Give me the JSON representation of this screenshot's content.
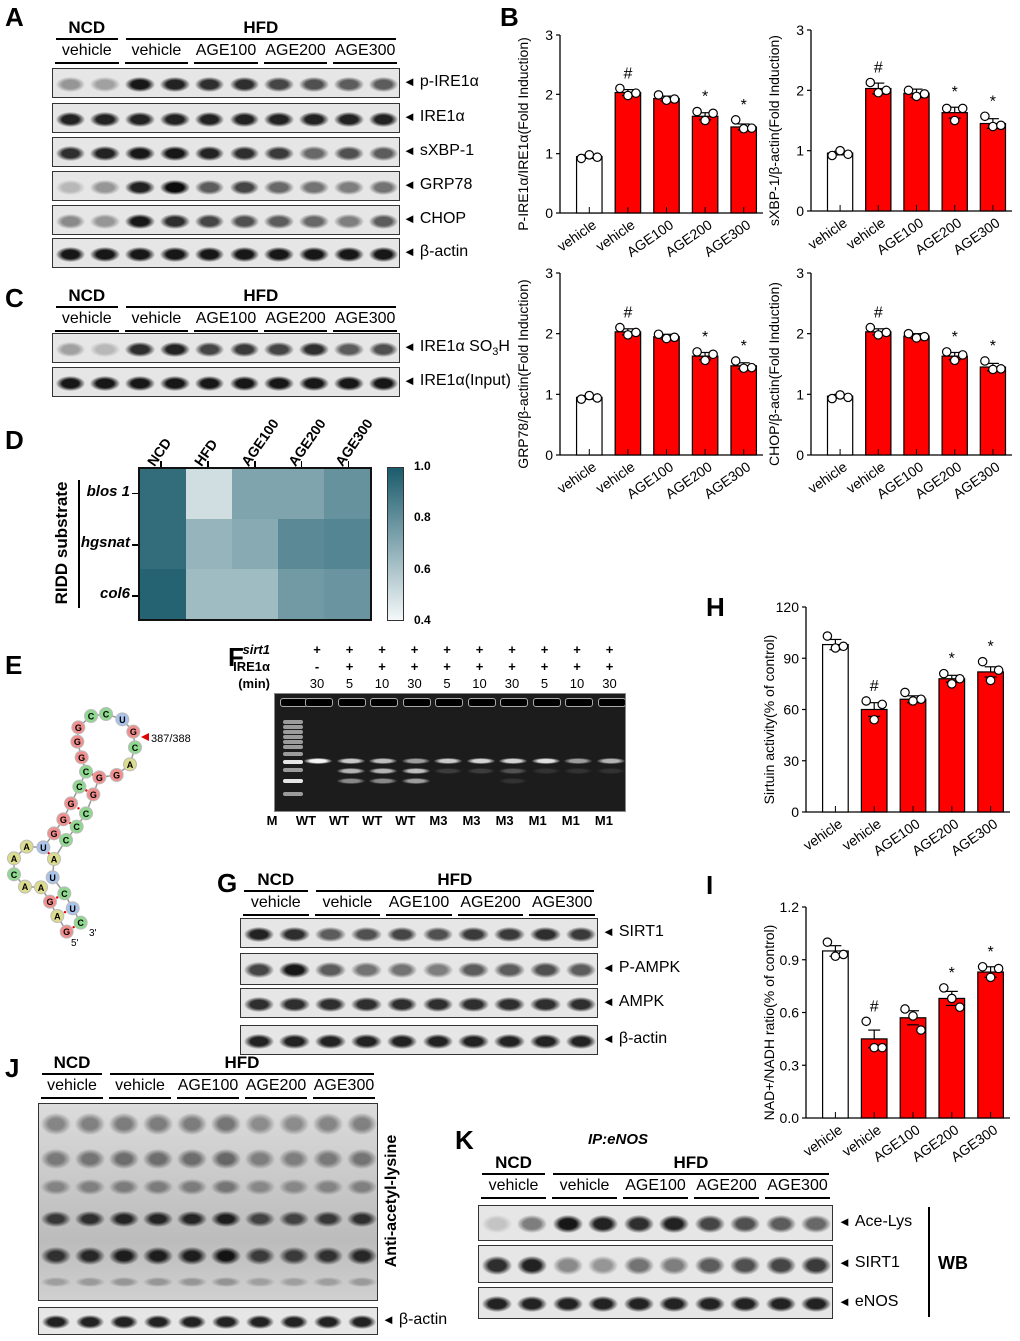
{
  "panel_labels": {
    "A": "A",
    "B": "B",
    "C": "C",
    "D": "D",
    "E": "E",
    "F": "F",
    "G": "G",
    "H": "H",
    "I": "I",
    "J": "J",
    "K": "K"
  },
  "arrow": "◄",
  "blot_panels": {
    "A": {
      "groups": [
        {
          "label": "NCD",
          "lanes": 2
        },
        {
          "label": "HFD",
          "lanes": 8
        }
      ],
      "subgroups": [
        "vehicle",
        "vehicle",
        "AGE100",
        "AGE200",
        "AGE300"
      ],
      "rows": [
        {
          "label": "p-IRE1α",
          "bands": [
            0.35,
            0.3,
            0.9,
            0.85,
            0.8,
            0.8,
            0.7,
            0.65,
            0.6,
            0.6
          ]
        },
        {
          "label": "IRE1α",
          "bands": [
            0.85,
            0.85,
            0.85,
            0.85,
            0.85,
            0.85,
            0.85,
            0.85,
            0.85,
            0.85
          ]
        },
        {
          "label": "sXBP-1",
          "bands": [
            0.8,
            0.85,
            0.9,
            0.9,
            0.85,
            0.8,
            0.75,
            0.55,
            0.65,
            0.6
          ]
        },
        {
          "label": "GRP78",
          "bands": [
            0.2,
            0.35,
            0.85,
            0.95,
            0.6,
            0.7,
            0.55,
            0.5,
            0.45,
            0.5
          ]
        },
        {
          "label": "CHOP",
          "bands": [
            0.4,
            0.35,
            0.9,
            0.8,
            0.7,
            0.65,
            0.6,
            0.55,
            0.45,
            0.6
          ]
        },
        {
          "label": "β-actin",
          "bands": [
            0.9,
            0.9,
            0.9,
            0.9,
            0.9,
            0.9,
            0.9,
            0.9,
            0.9,
            0.9
          ]
        }
      ]
    },
    "C": {
      "groups": [
        {
          "label": "NCD",
          "lanes": 2
        },
        {
          "label": "HFD",
          "lanes": 8
        }
      ],
      "subgroups": [
        "vehicle",
        "vehicle",
        "AGE100",
        "AGE200",
        "AGE300"
      ],
      "rows": [
        {
          "label": "IRE1α SO",
          "sub": "3",
          "suffix": "H",
          "bands": [
            0.3,
            0.2,
            0.8,
            0.85,
            0.7,
            0.75,
            0.7,
            0.8,
            0.6,
            0.65
          ]
        },
        {
          "label": "IRE1α(Input)",
          "bands": [
            0.9,
            0.9,
            0.9,
            0.9,
            0.9,
            0.9,
            0.9,
            0.9,
            0.9,
            0.9
          ]
        }
      ]
    },
    "G": {
      "groups": [
        {
          "label": "NCD",
          "lanes": 2
        },
        {
          "label": "HFD",
          "lanes": 8
        }
      ],
      "subgroups": [
        "vehicle",
        "vehicle",
        "AGE100",
        "AGE200",
        "AGE300"
      ],
      "rows": [
        {
          "label": "SIRT1",
          "bands": [
            0.85,
            0.8,
            0.6,
            0.65,
            0.7,
            0.65,
            0.75,
            0.75,
            0.8,
            0.75
          ]
        },
        {
          "label": "P-AMPK",
          "bands": [
            0.7,
            0.9,
            0.6,
            0.5,
            0.5,
            0.45,
            0.6,
            0.6,
            0.65,
            0.6
          ]
        },
        {
          "label": "AMPK",
          "bands": [
            0.8,
            0.8,
            0.8,
            0.8,
            0.8,
            0.8,
            0.8,
            0.8,
            0.8,
            0.8
          ]
        },
        {
          "label": "β-actin",
          "bands": [
            0.85,
            0.85,
            0.85,
            0.85,
            0.85,
            0.85,
            0.85,
            0.85,
            0.85,
            0.85
          ]
        }
      ]
    },
    "J": {
      "groups": [
        {
          "label": "NCD",
          "lanes": 2
        },
        {
          "label": "HFD",
          "lanes": 8
        }
      ],
      "subgroups": [
        "vehicle",
        "vehicle",
        "AGE100",
        "AGE200",
        "AGE300"
      ],
      "rows": [
        {
          "label": "Anti-acetyl-lysine",
          "vertical": true,
          "bands": [
            0.75,
            0.8,
            0.85,
            0.85,
            0.85,
            0.9,
            0.7,
            0.7,
            0.75,
            0.8
          ]
        },
        {
          "label": "β-actin",
          "bands": [
            0.85,
            0.85,
            0.85,
            0.85,
            0.85,
            0.85,
            0.85,
            0.85,
            0.85,
            0.85
          ]
        }
      ]
    },
    "K": {
      "title": "IP:eNOS",
      "wb_label": "WB",
      "groups": [
        {
          "label": "NCD",
          "lanes": 2
        },
        {
          "label": "HFD",
          "lanes": 8
        }
      ],
      "subgroups": [
        "vehicle",
        "vehicle",
        "AGE100",
        "AGE200",
        "AGE300"
      ],
      "rows": [
        {
          "label": "Ace-Lys",
          "bands": [
            0.15,
            0.45,
            0.9,
            0.85,
            0.8,
            0.85,
            0.7,
            0.65,
            0.6,
            0.55
          ]
        },
        {
          "label": "SIRT1",
          "bands": [
            0.8,
            0.85,
            0.4,
            0.35,
            0.5,
            0.45,
            0.6,
            0.65,
            0.7,
            0.75
          ]
        },
        {
          "label": "eNOS",
          "bands": [
            0.85,
            0.85,
            0.85,
            0.85,
            0.85,
            0.85,
            0.85,
            0.85,
            0.85,
            0.85
          ]
        }
      ]
    }
  },
  "gel": {
    "row_labels": [
      "sirt1",
      "IRE1α",
      "(min)"
    ],
    "sirt1": [
      "+",
      "+",
      "+",
      "+",
      "+",
      "+",
      "+",
      "+",
      "+",
      "+"
    ],
    "ire1a": [
      "-",
      "+",
      "+",
      "+",
      "+",
      "+",
      "+",
      "+",
      "+",
      "+"
    ],
    "min": [
      "30",
      "5",
      "10",
      "30",
      "5",
      "10",
      "30",
      "5",
      "10",
      "30"
    ],
    "lane_labels": [
      "M",
      "WT",
      "WT",
      "WT",
      "WT",
      "M3",
      "M3",
      "M3",
      "M1",
      "M1",
      "M1"
    ],
    "bands": [
      [
        1,
        0,
        0
      ],
      [
        0.8,
        0.7,
        0.5
      ],
      [
        0.75,
        0.7,
        0.5
      ],
      [
        0.6,
        0.75,
        0.6
      ],
      [
        0.8,
        0.15,
        0
      ],
      [
        0.85,
        0.15,
        0
      ],
      [
        0.85,
        0.25,
        0.1
      ],
      [
        0.9,
        0.1,
        0
      ],
      [
        0.6,
        0.1,
        0
      ],
      [
        0.7,
        0.1,
        0
      ]
    ]
  },
  "rna": {
    "sequence": [
      "G",
      "A",
      "G",
      "A",
      "A",
      "C",
      "A",
      "A",
      "U",
      "G",
      "G",
      "G",
      "C",
      "C",
      "G",
      "G",
      "G",
      "C",
      "C",
      "U",
      "G",
      "C",
      "A",
      "G",
      "G",
      "G",
      "C",
      "C",
      "C",
      "A",
      "U",
      "C",
      "U",
      "C"
    ],
    "cleavage_label": "387/388",
    "five_prime": "5'",
    "three_prime": "3'",
    "colors": {
      "G": "#f28e8e",
      "C": "#8fd88f",
      "A": "#dcdc8e",
      "U": "#a9c3ea"
    }
  },
  "colors": {
    "control": "#ffffff",
    "treatment": "#ff0000",
    "heat_low": "#f4f8f9",
    "heat_high": "#1a5b6c",
    "arrow_red": "#e00000"
  },
  "chart_data": [
    {
      "id": "B1",
      "type": "bar",
      "ylabel": "P-IRE1α/IRE1α(Fold Induction)",
      "categories": [
        "vehicle",
        "vehicle",
        "AGE100",
        "AGE200",
        "AGE300"
      ],
      "values": [
        0.95,
        2.03,
        1.93,
        1.63,
        1.45
      ],
      "sem": [
        0.03,
        0.05,
        0.04,
        0.06,
        0.05
      ],
      "points": [
        [
          0.92,
          0.98,
          0.94
        ],
        [
          2.1,
          1.98,
          2.02
        ],
        [
          1.99,
          1.9,
          1.92
        ],
        [
          1.71,
          1.56,
          1.68
        ],
        [
          1.57,
          1.42,
          1.43
        ]
      ],
      "significance": [
        "",
        "#",
        "",
        "*",
        "*"
      ],
      "ylim": [
        0,
        3
      ],
      "yticks": [
        "0",
        "1",
        "2",
        "3"
      ]
    },
    {
      "id": "B2",
      "type": "bar",
      "ylabel": "sXBP-1/β-actin(Fold Induction)",
      "categories": [
        "vehicle",
        "vehicle",
        "AGE100",
        "AGE200",
        "AGE300"
      ],
      "values": [
        0.96,
        2.03,
        1.95,
        1.63,
        1.45
      ],
      "sem": [
        0.03,
        0.09,
        0.07,
        0.09,
        0.08
      ],
      "points": [
        [
          0.92,
          1.0,
          0.94
        ],
        [
          2.13,
          1.96,
          2.0
        ],
        [
          2.0,
          1.9,
          1.94
        ],
        [
          1.7,
          1.5,
          1.7
        ],
        [
          1.57,
          1.4,
          1.42
        ]
      ],
      "significance": [
        "",
        "#",
        "",
        "*",
        "*"
      ],
      "ylim": [
        0,
        3
      ],
      "yticks": [
        "0",
        "1",
        "2",
        "3"
      ]
    },
    {
      "id": "B3",
      "type": "bar",
      "ylabel": "GRP78/β-actin(Fold Induction)",
      "categories": [
        "vehicle",
        "vehicle",
        "AGE100",
        "AGE200",
        "AGE300"
      ],
      "values": [
        0.95,
        2.03,
        1.95,
        1.63,
        1.47
      ],
      "sem": [
        0.03,
        0.05,
        0.04,
        0.06,
        0.05
      ],
      "points": [
        [
          0.92,
          0.98,
          0.94
        ],
        [
          2.1,
          1.98,
          2.02
        ],
        [
          1.99,
          1.92,
          1.94
        ],
        [
          1.7,
          1.56,
          1.66
        ],
        [
          1.55,
          1.43,
          1.44
        ]
      ],
      "significance": [
        "",
        "#",
        "",
        "*",
        "*"
      ],
      "ylim": [
        0,
        3
      ],
      "yticks": [
        "0",
        "1",
        "2",
        "3"
      ]
    },
    {
      "id": "B4",
      "type": "bar",
      "ylabel": "CHOP/β-actin(Fold Induction)",
      "categories": [
        "vehicle",
        "vehicle",
        "AGE100",
        "AGE200",
        "AGE300"
      ],
      "values": [
        0.97,
        2.03,
        1.96,
        1.63,
        1.45
      ],
      "sem": [
        0.03,
        0.05,
        0.04,
        0.06,
        0.06
      ],
      "points": [
        [
          0.93,
          0.99,
          0.95
        ],
        [
          2.1,
          1.98,
          2.02
        ],
        [
          2.0,
          1.93,
          1.95
        ],
        [
          1.7,
          1.56,
          1.65
        ],
        [
          1.55,
          1.41,
          1.42
        ]
      ],
      "significance": [
        "",
        "#",
        "",
        "*",
        "*"
      ],
      "ylim": [
        0,
        3
      ],
      "yticks": [
        "0",
        "1",
        "2",
        "3"
      ]
    },
    {
      "id": "H",
      "type": "bar",
      "ylabel": "Sirtuin activity(% of control)",
      "categories": [
        "vehicle",
        "vehicle",
        "AGE100",
        "AGE200",
        "AGE300"
      ],
      "values": [
        98,
        60,
        66,
        78,
        82
      ],
      "sem": [
        3,
        4,
        2,
        2,
        3
      ],
      "points": [
        [
          103,
          96,
          97
        ],
        [
          65,
          54,
          63
        ],
        [
          70,
          65,
          66
        ],
        [
          81,
          75,
          78
        ],
        [
          88,
          77,
          83
        ]
      ],
      "significance": [
        "",
        "#",
        "",
        "*",
        "*"
      ],
      "ylim": [
        0,
        120
      ],
      "yticks": [
        "0",
        "30",
        "60",
        "90",
        "120"
      ]
    },
    {
      "id": "I",
      "type": "bar",
      "ylabel": "NAD+/NADH ratio(% of control)",
      "categories": [
        "vehicle",
        "vehicle",
        "AGE100",
        "AGE200",
        "AGE300"
      ],
      "values": [
        0.95,
        0.45,
        0.57,
        0.68,
        0.83
      ],
      "sem": [
        0.03,
        0.05,
        0.04,
        0.04,
        0.03
      ],
      "points": [
        [
          1.0,
          0.92,
          0.93
        ],
        [
          0.55,
          0.4,
          0.4
        ],
        [
          0.62,
          0.58,
          0.5
        ],
        [
          0.74,
          0.68,
          0.63
        ],
        [
          0.86,
          0.8,
          0.85
        ]
      ],
      "significance": [
        "",
        "#",
        "",
        "*",
        "*"
      ],
      "ylim": [
        0,
        1.2
      ],
      "yticks": [
        "0.0",
        "0.3",
        "0.6",
        "0.9",
        "1.2"
      ]
    },
    {
      "id": "D",
      "type": "heatmap",
      "ylabel": "RIDD substrate",
      "columns": [
        "NCD",
        "HFD",
        "AGE100",
        "AGE200",
        "AGE300"
      ],
      "rows": [
        "blos 1",
        "hgsnat",
        "col6"
      ],
      "values": [
        [
          0.93,
          0.5,
          0.72,
          0.72,
          0.79
        ],
        [
          0.93,
          0.66,
          0.7,
          0.82,
          0.84
        ],
        [
          0.97,
          0.63,
          0.63,
          0.76,
          0.78
        ]
      ],
      "colorbar_ticks": [
        "1.0",
        "0.8",
        "0.6",
        "0.4"
      ],
      "range": [
        0.4,
        1.0
      ]
    }
  ]
}
